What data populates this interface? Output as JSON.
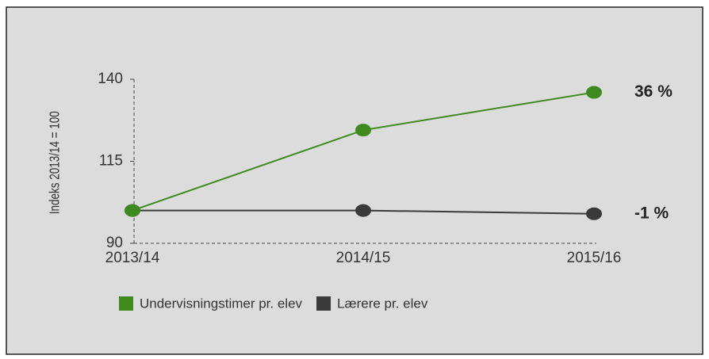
{
  "chart_data": {
    "type": "line",
    "y_label": "Indeks 2013/14 = 100",
    "categories": [
      "2013/14",
      "2014/15",
      "2015/16"
    ],
    "series": [
      {
        "name": "Undervisningstimer pr. elev",
        "color": "#3f8a1f",
        "values": [
          100,
          124.5,
          136
        ]
      },
      {
        "name": "Lærere pr. elev",
        "color": "#3a3a3a",
        "values": [
          100,
          100,
          99
        ]
      }
    ],
    "annotations": [
      "36 %",
      "-1 %"
    ],
    "ylim": [
      90,
      140
    ],
    "yticks": [
      90,
      115,
      140
    ]
  }
}
